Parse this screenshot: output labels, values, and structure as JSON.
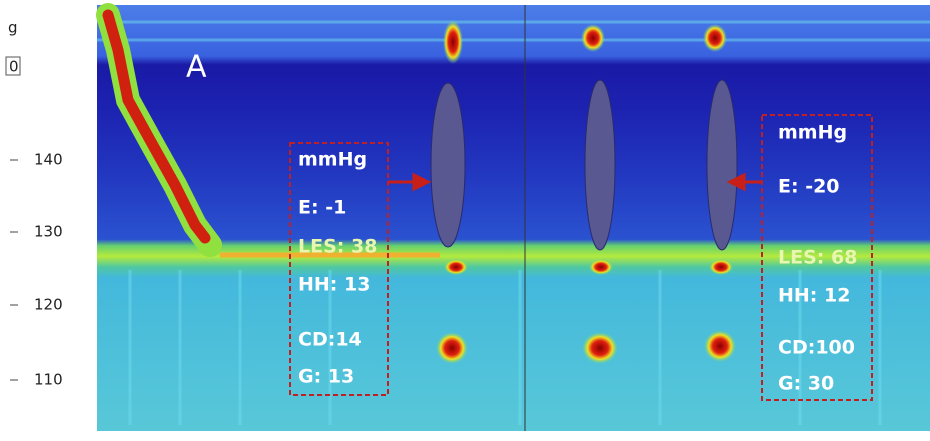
{
  "axis": {
    "unit": "g",
    "top_box": "0",
    "ticks": [
      "140",
      "130",
      "120",
      "110"
    ]
  },
  "panel_label": "A",
  "annotations": [
    {
      "unit": "mmHg",
      "e": "E: -1",
      "les": "LES: 38",
      "hh": "HH: 13",
      "cd": "CD:14",
      "g": "G: 13"
    },
    {
      "unit": "mmHg",
      "e": "E: -20",
      "les": "LES: 68",
      "hh": "HH: 12",
      "cd": "CD:100",
      "g": "G: 30"
    }
  ]
}
